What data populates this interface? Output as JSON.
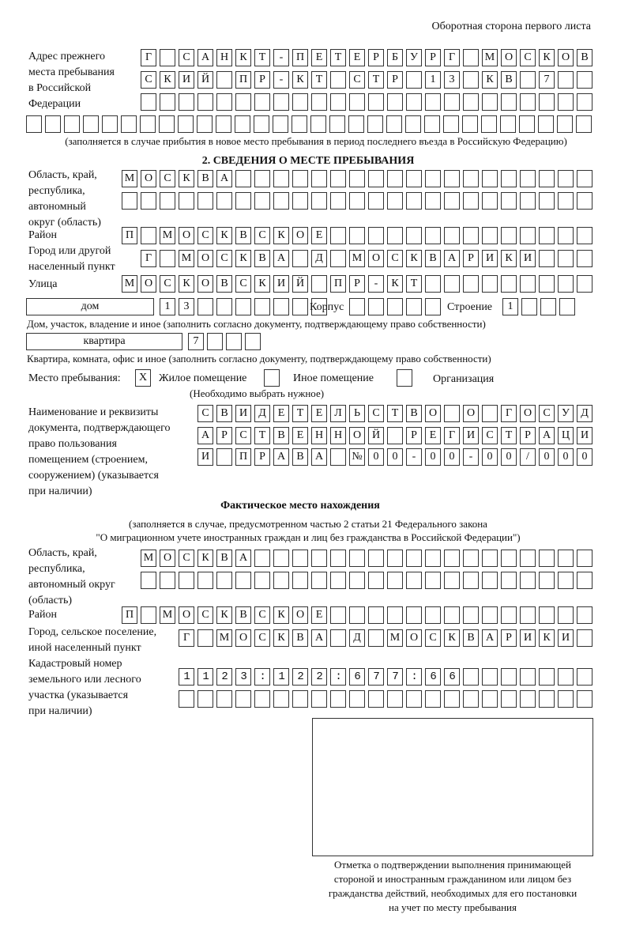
{
  "header": {
    "page_side": "Оборотная сторона первого листа"
  },
  "previous_address": {
    "label": [
      "Адрес прежнего",
      "места пребывания",
      "в Российской",
      "Федерации"
    ],
    "rows": [
      "Г САНКТ-ПЕТЕРБУРГ МОСКОВ",
      "СКИЙ ПР-КТ СТР 13 КВ 7  ",
      "                        ",
      "                              "
    ],
    "note": "(заполняется в случае прибытия в новое место пребывания в период последнего въезда в Российскую Федерацию)"
  },
  "section2": {
    "title": "2. СВЕДЕНИЯ О МЕСТЕ ПРЕБЫВАНИЯ",
    "region_label": [
      "Область, край,",
      "республика,",
      "автономный",
      "округ (область)"
    ],
    "region_rows": [
      "МОСКВА                   ",
      "                         "
    ],
    "district_label": "Район",
    "district_row": "П МОСКВСКОЕ              ",
    "city_label": [
      "Город или другой",
      "населенный пункт"
    ],
    "city_row": "Г МОСКВА Д МОСКВАРИКИ   ",
    "street_label": "Улица",
    "street_row": "МОСКОВСКИЙ ПР-КТ         ",
    "house_type": "дом",
    "house_cells": "13       ",
    "korpus_label": "Корпус",
    "korpus_cells": "     ",
    "building_label": "Строение",
    "building_cells": "1   ",
    "house_note": "Дом, участок, владение и иное (заполнить согласно документу, подтверждающему право собственности)",
    "apartment_type": "квартира",
    "apartment_cells": "7   ",
    "apartment_note": "Квартира, комната, офис и иное (заполнить согласно документу, подтверждающему право собственности)",
    "stay_place_label": "Место пребывания:",
    "options": [
      {
        "mark": "X",
        "label": "Жилое помещение",
        "checked": true
      },
      {
        "mark": "",
        "label": "Иное помещение",
        "checked": false
      },
      {
        "mark": "",
        "label": "Организация",
        "checked": false
      }
    ],
    "choose_note": "(Необходимо выбрать нужное)",
    "document_label": [
      "Наименование и реквизиты",
      "документа, подтверждающего",
      "право пользования",
      "помещением (строением,",
      "сооружением) (указывается",
      "при наличии)"
    ],
    "document_rows": [
      "СВИДЕТЕЛЬСТВО О ГОСУД",
      "АРСТВЕННОЙ РЕГИСТРАЦИ",
      "И ПРАВА №00-00-00/000"
    ]
  },
  "actual_location": {
    "title": "Фактическое место нахождения",
    "note": [
      "(заполняется в случае, предусмотренном частью 2 статьи 21 Федерального закона",
      "\"О миграционном учете иностранных граждан и лиц без гражданства в Российской Федерации\")"
    ],
    "region_label": [
      "Область, край,",
      "республика,",
      "автономный округ",
      "(область)"
    ],
    "region_rows": [
      "МОСКВА                  ",
      "                        "
    ],
    "district_label": "Район",
    "district_row": "П МОСКВСКОЕ              ",
    "city_label": [
      "Город, сельское поселение,",
      "иной населенный пункт"
    ],
    "city_row": "Г МОСКВА Д МОСКВАРИКИ ",
    "cadastral_label": [
      "Кадастровый номер",
      "земельного или лесного",
      "участка (указывается",
      "при наличии)"
    ],
    "cadastral_rows": [
      "1123:122:677:66       ",
      "                      "
    ]
  },
  "confirmation": {
    "caption": [
      "Отметка о подтверждении выполнения принимающей",
      "стороной и иностранным гражданином или лицом без",
      "гражданства действий, необходимых для его постановки",
      "на учет по месту пребывания"
    ]
  }
}
